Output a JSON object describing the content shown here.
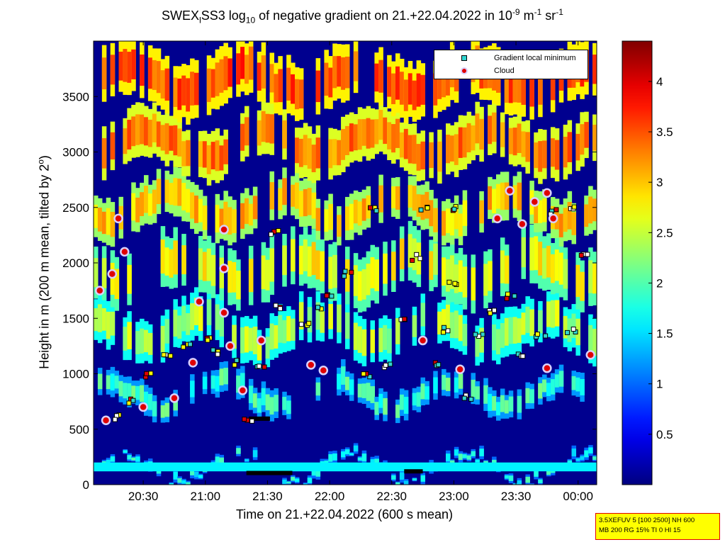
{
  "title": {
    "prefix": "SWEX",
    "sub1": "l",
    "mid": "SS3 log",
    "sub2": "10",
    "rest": " of negative gradient on 21.+22.04.2022 in 10",
    "exp1": "-9",
    "unit_m": " m",
    "exp2": "-1",
    "unit_sr": " sr",
    "exp3": "-1"
  },
  "xlabel": {
    "text": "Time on 21.+22.04.2022 (600 s mean)",
    "start": "Time on 21.+22.04.2022 (600 s mean)"
  },
  "ylabel": {
    "pre": "Height in m (200 m mean, tilted by 2",
    "sup": "o",
    "post": ")"
  },
  "legend": {
    "min_label": "Gradient local minimum",
    "cloud_label": "Cloud"
  },
  "infobox": {
    "line1": "3.5XEFUV 5 [100 2500] NH 600",
    "line2": "MB 200 RG 15% TI 0 HI 15"
  },
  "colors": {
    "background": "#00008f",
    "marker_fill": "#30d5d0",
    "cloud_fill": "#e00000",
    "cloud_edge": "#d8d0ff"
  },
  "chart_data": {
    "type": "heatmap",
    "x_ticks": [
      "20:30",
      "21:00",
      "21:30",
      "22:00",
      "22:30",
      "23:00",
      "23:30",
      "00:00"
    ],
    "y_ticks": [
      0,
      500,
      1000,
      1500,
      2000,
      2500,
      3000,
      3500
    ],
    "ylim": [
      0,
      4000
    ],
    "xlim_hours": [
      20.1,
      24.15
    ],
    "colorbar_ticks": [
      0.5,
      1,
      1.5,
      2,
      2.5,
      3,
      3.5,
      4
    ],
    "colorbar_range": [
      0,
      4.4
    ],
    "colormap": "jet",
    "bands": [
      {
        "name": "surface",
        "y0": 120,
        "y1": 200,
        "value": 1.6
      },
      {
        "name": "low-boundary",
        "y0": 700,
        "y1": 950,
        "value": 1.8
      },
      {
        "name": "mid-1",
        "y0": 1200,
        "y1": 1600,
        "value": 2.3
      },
      {
        "name": "mid-2",
        "y0": 1700,
        "y1": 2200,
        "value": 2.6
      },
      {
        "name": "upper-1",
        "y0": 2300,
        "y1": 2700,
        "value": 2.9
      },
      {
        "name": "upper-2",
        "y0": 2850,
        "y1": 3300,
        "value": 3.2
      },
      {
        "name": "top",
        "y0": 3400,
        "y1": 3900,
        "value": 3.4
      }
    ],
    "gradient_local_minimum": [
      {
        "t": 20.3,
        "h": 600
      },
      {
        "t": 20.4,
        "h": 760
      },
      {
        "t": 20.55,
        "h": 980
      },
      {
        "t": 20.7,
        "h": 1150
      },
      {
        "t": 20.85,
        "h": 1250
      },
      {
        "t": 21.0,
        "h": 1300
      },
      {
        "t": 21.1,
        "h": 1200
      },
      {
        "t": 21.25,
        "h": 1100
      },
      {
        "t": 21.35,
        "h": 600
      },
      {
        "t": 21.45,
        "h": 1050
      },
      {
        "t": 21.6,
        "h": 1600
      },
      {
        "t": 21.55,
        "h": 2280
      },
      {
        "t": 21.8,
        "h": 1450
      },
      {
        "t": 21.9,
        "h": 1600
      },
      {
        "t": 22.0,
        "h": 1700
      },
      {
        "t": 22.15,
        "h": 1900
      },
      {
        "t": 22.3,
        "h": 1000
      },
      {
        "t": 22.45,
        "h": 1060
      },
      {
        "t": 22.6,
        "h": 1500
      },
      {
        "t": 22.7,
        "h": 2050
      },
      {
        "t": 22.85,
        "h": 1100
      },
      {
        "t": 22.95,
        "h": 1400
      },
      {
        "t": 23.0,
        "h": 1800
      },
      {
        "t": 23.1,
        "h": 800
      },
      {
        "t": 23.2,
        "h": 1350
      },
      {
        "t": 23.3,
        "h": 1550
      },
      {
        "t": 23.45,
        "h": 1700
      },
      {
        "t": 23.55,
        "h": 1150
      },
      {
        "t": 23.7,
        "h": 1350
      },
      {
        "t": 23.8,
        "h": 2450
      },
      {
        "t": 23.95,
        "h": 1400
      },
      {
        "t": 24.05,
        "h": 2050
      },
      {
        "t": 22.35,
        "h": 2480
      },
      {
        "t": 22.75,
        "h": 2480
      },
      {
        "t": 23.0,
        "h": 2480
      },
      {
        "t": 23.95,
        "h": 2480
      }
    ],
    "cloud": [
      {
        "t": 20.15,
        "h": 1750
      },
      {
        "t": 20.25,
        "h": 1900
      },
      {
        "t": 20.35,
        "h": 2100
      },
      {
        "t": 20.3,
        "h": 2400
      },
      {
        "t": 20.2,
        "h": 580
      },
      {
        "t": 20.5,
        "h": 700
      },
      {
        "t": 20.75,
        "h": 780
      },
      {
        "t": 20.9,
        "h": 1100
      },
      {
        "t": 20.95,
        "h": 1650
      },
      {
        "t": 21.15,
        "h": 2300
      },
      {
        "t": 21.15,
        "h": 1950
      },
      {
        "t": 21.15,
        "h": 1550
      },
      {
        "t": 21.2,
        "h": 1250
      },
      {
        "t": 21.3,
        "h": 850
      },
      {
        "t": 21.45,
        "h": 1300
      },
      {
        "t": 21.85,
        "h": 1080
      },
      {
        "t": 21.95,
        "h": 1030
      },
      {
        "t": 22.75,
        "h": 1300
      },
      {
        "t": 23.05,
        "h": 1040
      },
      {
        "t": 23.35,
        "h": 2400
      },
      {
        "t": 23.45,
        "h": 2650
      },
      {
        "t": 23.55,
        "h": 2350
      },
      {
        "t": 23.65,
        "h": 2550
      },
      {
        "t": 23.75,
        "h": 2630
      },
      {
        "t": 23.8,
        "h": 2400
      },
      {
        "t": 23.75,
        "h": 1050
      },
      {
        "t": 24.1,
        "h": 1170
      }
    ],
    "blocks": [
      {
        "t0": 21.33,
        "t1": 21.7,
        "h": 105
      },
      {
        "t0": 22.6,
        "t1": 22.75,
        "h": 120
      },
      {
        "t0": 21.35,
        "t1": 21.52,
        "h": 595
      }
    ]
  }
}
